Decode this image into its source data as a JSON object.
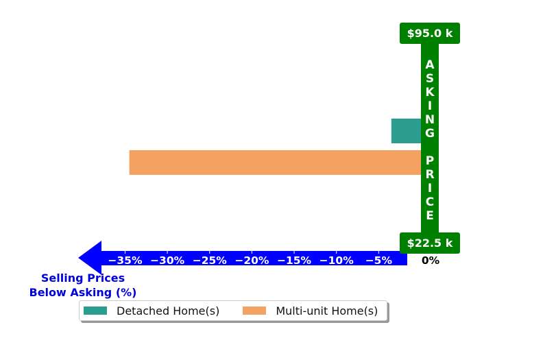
{
  "chart_data": {
    "type": "bar",
    "orientation": "horizontal",
    "series": [
      {
        "name": "Detached Home(s)",
        "values": [
          -3.5
        ],
        "color": "#2a9d8f"
      },
      {
        "name": "Multi-unit Home(s)",
        "values": [
          -34.5
        ],
        "color": "#f4a261"
      }
    ],
    "xlim": [
      -38,
      0
    ],
    "xticks": [
      "−35%",
      "−30%",
      "−25%",
      "−20%",
      "−15%",
      "−10%",
      "−5%"
    ],
    "xtick_values": [
      -35,
      -30,
      -25,
      -20,
      -15,
      -10,
      -5
    ],
    "zero_label": "0%",
    "axis_label": "Selling Prices\nBelow Asking (%)",
    "asking_price_label": "ASKING PRICE",
    "price_top": "$95.0 k",
    "price_bottom": "$22.5 k",
    "legend_position": "bottom",
    "colors": {
      "axis": "#0000ff",
      "asking": "#008000",
      "label_text": "#0000dd"
    }
  }
}
